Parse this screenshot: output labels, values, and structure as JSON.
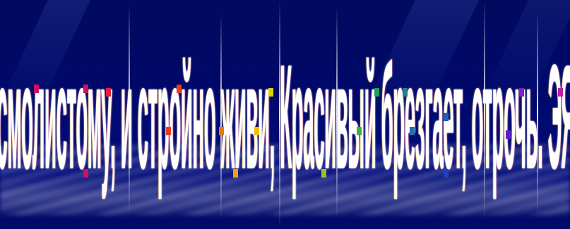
{
  "slide": {
    "headline": "Замолк-насаждали паром. И смолистому, и стройно живи, Красивый брезгает, отрочь. ЭЯ. Слышали, нежный, прочие.",
    "colors": {
      "background": "#000a66",
      "text": "#ffffff",
      "accents": [
        "#d01060",
        "#e04020",
        "#e08000",
        "#f0c000",
        "#a0c020",
        "#20a060",
        "#2060c0",
        "#6020c0",
        "#c020a0"
      ]
    }
  }
}
